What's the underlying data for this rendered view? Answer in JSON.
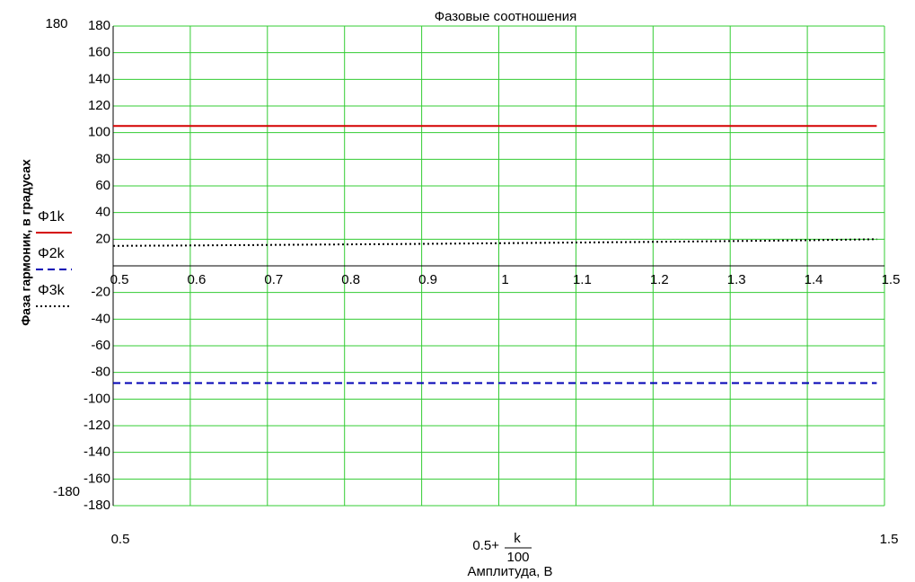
{
  "chart_data": {
    "type": "line",
    "title": "Фазовые соотношения",
    "x_label": "Амплитуда, В",
    "y_label": "Фаза гармоник, в градусах",
    "x_expression": {
      "prefix": "0.5+",
      "numerator": "k",
      "denominator": "100"
    },
    "x_limit_labels": [
      "0.5",
      "1.5"
    ],
    "y_limit_labels": [
      "180",
      "-180"
    ],
    "x": [
      0.5,
      0.6,
      0.7,
      0.8,
      0.9,
      1.0,
      1.1,
      1.2,
      1.3,
      1.4,
      1.49
    ],
    "series": [
      {
        "name": "Φ1k",
        "color": "#d40000",
        "style": "solid",
        "values": [
          105,
          105,
          105,
          105,
          105,
          105,
          105,
          105,
          105,
          105,
          105
        ]
      },
      {
        "name": "Φ2k",
        "color": "#0000b4",
        "style": "dashed",
        "values": [
          -88,
          -88,
          -88,
          -88,
          -88,
          -88,
          -88,
          -88,
          -88,
          -88,
          -88
        ]
      },
      {
        "name": "Φ3k",
        "color": "#000000",
        "style": "dotted",
        "values": [
          15,
          15.3,
          15.7,
          16.1,
          16.5,
          17,
          17.5,
          18,
          18.6,
          19.2,
          20
        ]
      }
    ],
    "xlim": [
      0.5,
      1.5
    ],
    "xticks": [
      0.5,
      0.6,
      0.7,
      0.8,
      0.9,
      1,
      1.1,
      1.2,
      1.3,
      1.4,
      1.5
    ],
    "ylim": [
      -180,
      180
    ],
    "yticks": [
      -180,
      -160,
      -140,
      -120,
      -100,
      -80,
      -60,
      -40,
      -20,
      20,
      40,
      60,
      80,
      100,
      120,
      140,
      160,
      180
    ],
    "grid": true,
    "grid_color": "#33cc33"
  }
}
